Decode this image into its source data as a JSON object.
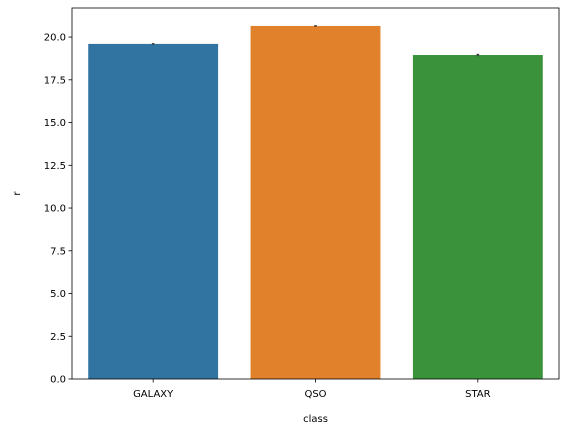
{
  "chart_data": {
    "type": "bar",
    "categories": [
      "GALAXY",
      "QSO",
      "STAR"
    ],
    "values": [
      19.6,
      20.65,
      18.95
    ],
    "error_bars": [
      [
        19.55,
        19.65
      ],
      [
        20.6,
        20.7
      ],
      [
        18.88,
        19.02
      ]
    ],
    "colors": [
      "#3274a1",
      "#e1812c",
      "#3a923a"
    ],
    "xlabel": "class",
    "ylabel": "r",
    "ylim": [
      0,
      21.7
    ],
    "yticks": [
      0.0,
      2.5,
      5.0,
      7.5,
      10.0,
      12.5,
      15.0,
      17.5,
      20.0
    ],
    "ytick_labels": [
      "0.0",
      "2.5",
      "5.0",
      "7.5",
      "10.0",
      "12.5",
      "15.0",
      "17.5",
      "20.0"
    ],
    "grid": false
  }
}
